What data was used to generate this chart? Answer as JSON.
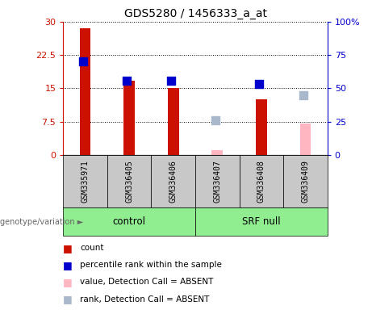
{
  "title": "GDS5280 / 1456333_a_at",
  "samples": [
    "GSM335971",
    "GSM336405",
    "GSM336406",
    "GSM336407",
    "GSM336408",
    "GSM336409"
  ],
  "bar_colors_present": "#cc1100",
  "bar_colors_absent": "#ffb6c1",
  "dot_colors_present": "#0000cc",
  "dot_colors_absent": "#aab8cc",
  "count_values": [
    28.5,
    16.8,
    15.0,
    null,
    12.5,
    null
  ],
  "count_absent_values": [
    null,
    null,
    null,
    1.1,
    null,
    7.0
  ],
  "rank_pct_present": [
    70.0,
    56.0,
    56.0,
    null,
    53.0,
    null
  ],
  "rank_pct_absent": [
    null,
    null,
    null,
    26.0,
    null,
    45.0
  ],
  "ylim_left": [
    0,
    30
  ],
  "ylim_right": [
    0,
    100
  ],
  "yticks_left": [
    0,
    7.5,
    15,
    22.5,
    30
  ],
  "ytick_labels_left": [
    "0",
    "7.5",
    "15",
    "22.5",
    "30"
  ],
  "yticks_right": [
    0,
    25,
    50,
    75,
    100
  ],
  "ytick_labels_right": [
    "0",
    "25",
    "50",
    "75",
    "100%"
  ],
  "left_axis_color": "#cc1100",
  "right_axis_color": "#0000cc",
  "bar_width": 0.25,
  "dot_size": 45,
  "group_ranges": [
    [
      0,
      2,
      "control"
    ],
    [
      3,
      5,
      "SRF null"
    ]
  ],
  "group_color": "#90ee90",
  "sample_box_color": "#c8c8c8",
  "legend_items": [
    {
      "label": "count",
      "color": "#cc1100"
    },
    {
      "label": "percentile rank within the sample",
      "color": "#0000cc"
    },
    {
      "label": "value, Detection Call = ABSENT",
      "color": "#ffb6c1"
    },
    {
      "label": "rank, Detection Call = ABSENT",
      "color": "#aab8cc"
    }
  ]
}
